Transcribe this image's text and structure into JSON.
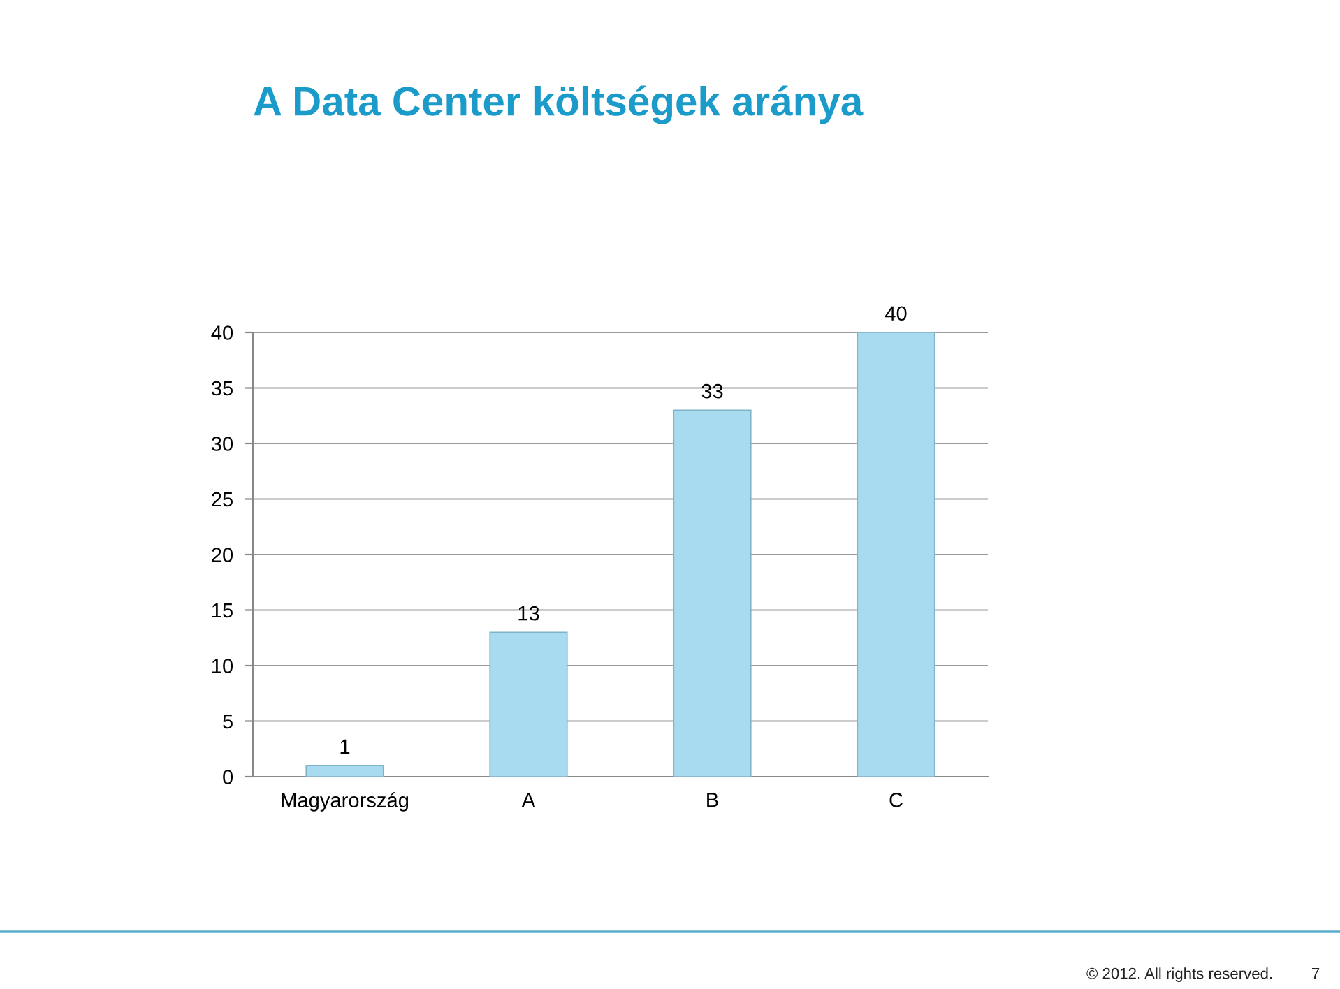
{
  "chart_data": {
    "type": "bar",
    "title": "A Data Center költségek aránya",
    "categories": [
      "Magyarország",
      "A",
      "B",
      "C"
    ],
    "values": [
      1,
      13,
      33,
      40
    ],
    "color": "#a8dbef",
    "ylim": [
      0,
      40
    ],
    "yticks": [
      0,
      5,
      10,
      15,
      20,
      25,
      30,
      35,
      40
    ],
    "grid": "y",
    "data_labels": true,
    "annotations": [
      "© 2012. All rights reserved.",
      "7"
    ]
  }
}
